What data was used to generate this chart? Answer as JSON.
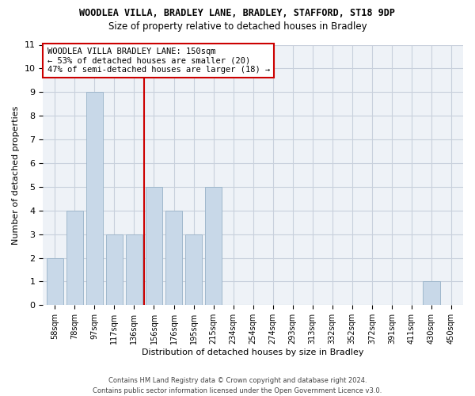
{
  "title": "WOODLEA VILLA, BRADLEY LANE, BRADLEY, STAFFORD, ST18 9DP",
  "subtitle": "Size of property relative to detached houses in Bradley",
  "xlabel": "Distribution of detached houses by size in Bradley",
  "ylabel": "Number of detached properties",
  "categories": [
    "58sqm",
    "78sqm",
    "97sqm",
    "117sqm",
    "136sqm",
    "156sqm",
    "176sqm",
    "195sqm",
    "215sqm",
    "234sqm",
    "254sqm",
    "274sqm",
    "293sqm",
    "313sqm",
    "332sqm",
    "352sqm",
    "372sqm",
    "391sqm",
    "411sqm",
    "430sqm",
    "450sqm"
  ],
  "values": [
    2,
    4,
    9,
    3,
    3,
    5,
    4,
    3,
    5,
    0,
    0,
    0,
    0,
    0,
    0,
    0,
    0,
    0,
    0,
    1,
    0
  ],
  "bar_color": "#c8d8e8",
  "bar_edgecolor": "#a0b8cc",
  "vline_x": 4.5,
  "vline_color": "#cc0000",
  "annotation_lines": [
    "WOODLEA VILLA BRADLEY LANE: 150sqm",
    "← 53% of detached houses are smaller (20)",
    "47% of semi-detached houses are larger (18) →"
  ],
  "ylim": [
    0,
    11
  ],
  "yticks": [
    0,
    1,
    2,
    3,
    4,
    5,
    6,
    7,
    8,
    9,
    10,
    11
  ],
  "footer": "Contains HM Land Registry data © Crown copyright and database right 2024.\nContains public sector information licensed under the Open Government Licence v3.0.",
  "bg_color": "#eef2f7",
  "grid_color": "#c8d0dc"
}
